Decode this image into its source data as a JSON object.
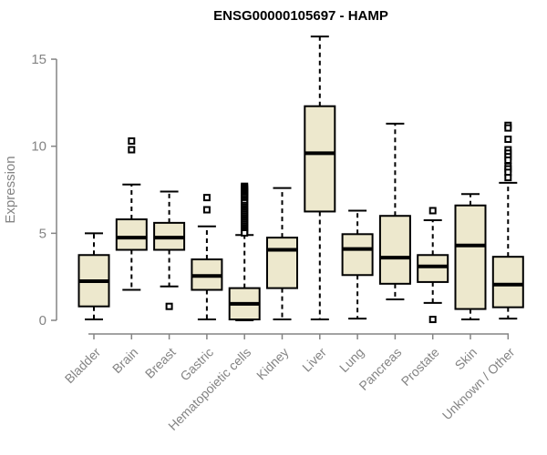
{
  "chart_data": {
    "type": "boxplot",
    "title": "ENSG00000105697 - HAMP",
    "xlabel": "",
    "ylabel": "Expression",
    "ylim": [
      0,
      15
    ],
    "yticks": [
      0,
      5,
      10,
      15
    ],
    "grid": false,
    "legend": "none",
    "colors": {
      "box_fill": "#EDE8CD",
      "box_stroke": "#000000",
      "median": "#000000",
      "whisker": "#000000",
      "outlier": "#000000",
      "axis": "#848484",
      "tick_label": "#848484",
      "title": "#000000"
    },
    "categories": [
      "Bladder",
      "Brain",
      "Breast",
      "Gastric",
      "Hematopoietic cells",
      "Kidney",
      "Liver",
      "Lung",
      "Pancreas",
      "Prostate",
      "Skin",
      "Unknown / Other"
    ],
    "series": [
      {
        "name": "Bladder",
        "low": 0.05,
        "q1": 0.8,
        "median": 2.25,
        "q3": 3.75,
        "high": 5.0,
        "outliers": []
      },
      {
        "name": "Brain",
        "low": 1.75,
        "q1": 4.05,
        "median": 4.75,
        "q3": 5.8,
        "high": 7.8,
        "outliers": [
          10.3,
          9.8
        ]
      },
      {
        "name": "Breast",
        "low": 1.95,
        "q1": 4.05,
        "median": 4.75,
        "q3": 5.6,
        "high": 7.4,
        "outliers": [
          0.8
        ]
      },
      {
        "name": "Gastric",
        "low": 0.05,
        "q1": 1.75,
        "median": 2.55,
        "q3": 3.5,
        "high": 5.4,
        "outliers": [
          7.05,
          6.35
        ]
      },
      {
        "name": "Hematopoietic cells",
        "low": 0.0,
        "q1": 0.05,
        "median": 0.95,
        "q3": 1.85,
        "high": 4.9,
        "outliers": [
          7.7,
          7.62,
          7.54,
          7.46,
          7.38,
          7.3,
          7.22,
          7.14,
          7.06,
          6.95,
          6.85,
          6.75,
          6.6,
          6.5,
          6.4,
          6.3,
          6.2,
          6.1,
          6.0,
          5.9,
          5.8,
          5.7,
          5.6,
          5.5,
          5.4,
          5.3,
          5.2,
          5.1,
          5.02
        ]
      },
      {
        "name": "Kidney",
        "low": 0.05,
        "q1": 1.85,
        "median": 4.05,
        "q3": 4.75,
        "high": 7.6,
        "outliers": []
      },
      {
        "name": "Liver",
        "low": 0.05,
        "q1": 6.25,
        "median": 9.6,
        "q3": 12.3,
        "high": 16.3,
        "outliers": []
      },
      {
        "name": "Lung",
        "low": 0.1,
        "q1": 2.6,
        "median": 4.1,
        "q3": 4.95,
        "high": 6.3,
        "outliers": []
      },
      {
        "name": "Pancreas",
        "low": 1.2,
        "q1": 2.1,
        "median": 3.6,
        "q3": 6.0,
        "high": 11.3,
        "outliers": []
      },
      {
        "name": "Prostate",
        "low": 1.0,
        "q1": 2.2,
        "median": 3.1,
        "q3": 3.75,
        "high": 5.75,
        "outliers": [
          6.3,
          0.05
        ]
      },
      {
        "name": "Skin",
        "low": 0.05,
        "q1": 0.65,
        "median": 4.3,
        "q3": 6.6,
        "high": 7.25,
        "outliers": []
      },
      {
        "name": "Unknown / Other",
        "low": 0.1,
        "q1": 0.75,
        "median": 2.05,
        "q3": 3.65,
        "high": 7.9,
        "outliers": [
          11.2,
          11.05,
          10.4,
          9.8,
          9.6,
          9.4,
          9.2,
          8.85,
          8.7,
          8.5,
          8.2
        ]
      }
    ]
  }
}
